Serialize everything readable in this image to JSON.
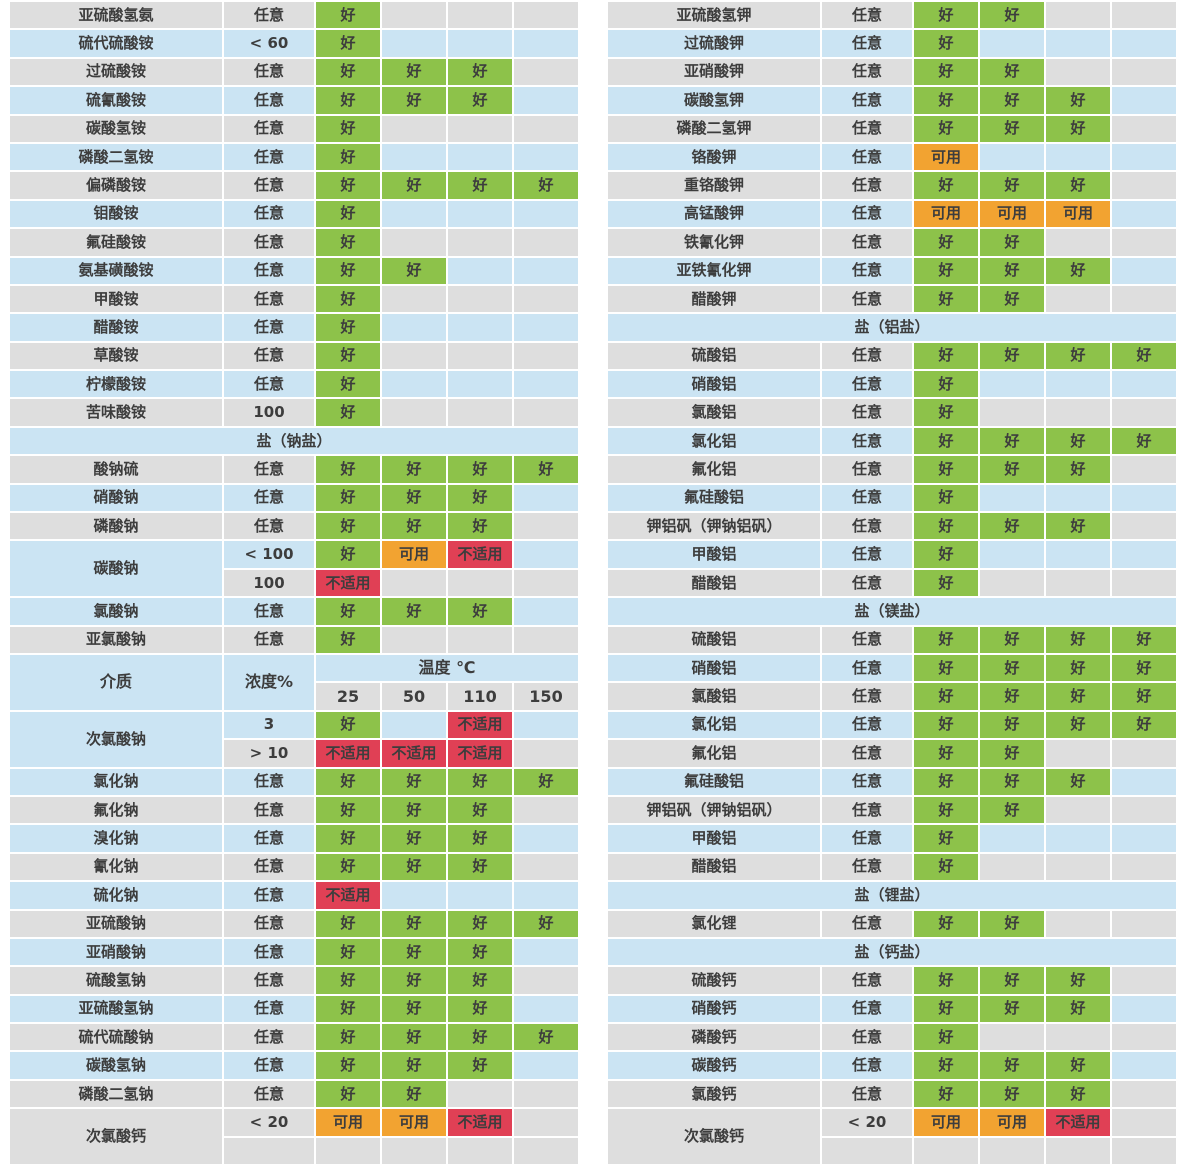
{
  "rating_labels": {
    "good": "好",
    "usable": "可用",
    "unsuitable": "不适用"
  },
  "colors": {
    "good": "#8dc24a",
    "usable": "#f2a331",
    "unsuitable": "#e04055",
    "row_gray": "#dedede",
    "row_blue": "#cbe4f3",
    "text": "#3d3d3d"
  },
  "header": {
    "medium": "介质",
    "concentration": "浓度%",
    "temperature": "温度 ℃",
    "temps": [
      "25",
      "50",
      "110",
      "150"
    ]
  },
  "left_table": {
    "rows": [
      {
        "n": "亚硫酸氢氨",
        "c": "任意",
        "r": [
          "G",
          null,
          null,
          null
        ],
        "s": "g"
      },
      {
        "n": "硫代硫酸铵",
        "c": "< 60",
        "r": [
          "G",
          null,
          null,
          null
        ],
        "s": "b"
      },
      {
        "n": "过硫酸铵",
        "c": "任意",
        "r": [
          "G",
          "G",
          "G",
          null
        ],
        "s": "g"
      },
      {
        "n": "硫氰酸铵",
        "c": "任意",
        "r": [
          "G",
          "G",
          "G",
          null
        ],
        "s": "b"
      },
      {
        "n": "碳酸氢铵",
        "c": "任意",
        "r": [
          "G",
          null,
          null,
          null
        ],
        "s": "g"
      },
      {
        "n": "磷酸二氢铵",
        "c": "任意",
        "r": [
          "G",
          null,
          null,
          null
        ],
        "s": "b"
      },
      {
        "n": "偏磷酸铵",
        "c": "任意",
        "r": [
          "G",
          "G",
          "G",
          "G"
        ],
        "s": "g"
      },
      {
        "n": "钼酸铵",
        "c": "任意",
        "r": [
          "G",
          null,
          null,
          null
        ],
        "s": "b"
      },
      {
        "n": "氟硅酸铵",
        "c": "任意",
        "r": [
          "G",
          null,
          null,
          null
        ],
        "s": "g"
      },
      {
        "n": "氨基磺酸铵",
        "c": "任意",
        "r": [
          "G",
          "G",
          null,
          null
        ],
        "s": "b"
      },
      {
        "n": "甲酸铵",
        "c": "任意",
        "r": [
          "G",
          null,
          null,
          null
        ],
        "s": "g"
      },
      {
        "n": "醋酸铵",
        "c": "任意",
        "r": [
          "G",
          null,
          null,
          null
        ],
        "s": "b"
      },
      {
        "n": "草酸铵",
        "c": "任意",
        "r": [
          "G",
          null,
          null,
          null
        ],
        "s": "g"
      },
      {
        "n": "柠檬酸铵",
        "c": "任意",
        "r": [
          "G",
          null,
          null,
          null
        ],
        "s": "b"
      },
      {
        "n": "苦味酸铵",
        "c": "100",
        "r": [
          "G",
          null,
          null,
          null
        ],
        "s": "g"
      },
      {
        "t": "sec",
        "n": "盐（钠盐）"
      },
      {
        "n": "酸钠硫",
        "c": "任意",
        "r": [
          "G",
          "G",
          "G",
          "G"
        ],
        "s": "g"
      },
      {
        "n": "硝酸钠",
        "c": "任意",
        "r": [
          "G",
          "G",
          "G",
          null
        ],
        "s": "b"
      },
      {
        "n": "磷酸钠",
        "c": "任意",
        "r": [
          "G",
          "G",
          "G",
          null
        ],
        "s": "g"
      },
      {
        "t": "m",
        "n": "碳酸钠",
        "ls": "b",
        "sub": [
          {
            "c": "< 100",
            "r": [
              "G",
              "U",
              "X",
              null
            ],
            "s": "b"
          },
          {
            "c": "100",
            "r": [
              "X",
              null,
              null,
              null
            ],
            "s": "g"
          }
        ]
      },
      {
        "n": "氯酸钠",
        "c": "任意",
        "r": [
          "G",
          "G",
          "G",
          null
        ],
        "s": "b"
      },
      {
        "n": "亚氯酸钠",
        "c": "任意",
        "r": [
          "G",
          null,
          null,
          null
        ],
        "s": "g"
      },
      {
        "t": "hdr"
      },
      {
        "t": "m",
        "n": "次氯酸钠",
        "ls": "b",
        "sub": [
          {
            "c": "3",
            "r": [
              "G",
              null,
              "X",
              null
            ],
            "s": "b"
          },
          {
            "c": "> 10",
            "r": [
              "X",
              "X",
              "X",
              null
            ],
            "s": "g"
          }
        ]
      },
      {
        "n": "氯化钠",
        "c": "任意",
        "r": [
          "G",
          "G",
          "G",
          "G"
        ],
        "s": "b"
      },
      {
        "n": "氟化钠",
        "c": "任意",
        "r": [
          "G",
          "G",
          "G",
          null
        ],
        "s": "g"
      },
      {
        "n": "溴化钠",
        "c": "任意",
        "r": [
          "G",
          "G",
          "G",
          null
        ],
        "s": "b"
      },
      {
        "n": "氰化钠",
        "c": "任意",
        "r": [
          "G",
          "G",
          "G",
          null
        ],
        "s": "g"
      },
      {
        "n": "硫化钠",
        "c": "任意",
        "r": [
          "X",
          null,
          null,
          null
        ],
        "s": "b"
      },
      {
        "n": "亚硫酸钠",
        "c": "任意",
        "r": [
          "G",
          "G",
          "G",
          "G"
        ],
        "s": "g"
      },
      {
        "n": "亚硝酸钠",
        "c": "任意",
        "r": [
          "G",
          "G",
          "G",
          null
        ],
        "s": "b"
      },
      {
        "n": "硫酸氢钠",
        "c": "任意",
        "r": [
          "G",
          "G",
          "G",
          null
        ],
        "s": "g"
      },
      {
        "n": "亚硫酸氢钠",
        "c": "任意",
        "r": [
          "G",
          "G",
          "G",
          null
        ],
        "s": "b"
      },
      {
        "n": "硫代硫酸钠",
        "c": "任意",
        "r": [
          "G",
          "G",
          "G",
          "G"
        ],
        "s": "g"
      },
      {
        "n": "碳酸氢钠",
        "c": "任意",
        "r": [
          "G",
          "G",
          "G",
          null
        ],
        "s": "b"
      },
      {
        "n": "磷酸二氢钠",
        "c": "任意",
        "r": [
          "G",
          "G",
          null,
          null
        ],
        "s": "g"
      },
      {
        "t": "m",
        "n": "次氯酸钙",
        "ls": "g",
        "sub": [
          {
            "c": "< 20",
            "r": [
              "U",
              "U",
              "X",
              null
            ],
            "s": "g"
          },
          {
            "c": "",
            "r": [
              null,
              null,
              null,
              null
            ],
            "s": "g"
          }
        ]
      }
    ]
  },
  "right_table": {
    "rows": [
      {
        "n": "亚硫酸氢钾",
        "c": "任意",
        "r": [
          "G",
          "G",
          null,
          null
        ],
        "s": "g"
      },
      {
        "n": "过硫酸钾",
        "c": "任意",
        "r": [
          "G",
          null,
          null,
          null
        ],
        "s": "b"
      },
      {
        "n": "亚硝酸钾",
        "c": "任意",
        "r": [
          "G",
          "G",
          null,
          null
        ],
        "s": "g"
      },
      {
        "n": "碳酸氢钾",
        "c": "任意",
        "r": [
          "G",
          "G",
          "G",
          null
        ],
        "s": "b"
      },
      {
        "n": "磷酸二氢钾",
        "c": "任意",
        "r": [
          "G",
          "G",
          "G",
          null
        ],
        "s": "g"
      },
      {
        "n": "铬酸钾",
        "c": "任意",
        "r": [
          "U",
          null,
          null,
          null
        ],
        "s": "b"
      },
      {
        "n": "重铬酸钾",
        "c": "任意",
        "r": [
          "G",
          "G",
          "G",
          null
        ],
        "s": "g"
      },
      {
        "n": "高锰酸钾",
        "c": "任意",
        "r": [
          "U",
          "U",
          "U",
          null
        ],
        "s": "b"
      },
      {
        "n": "铁氰化钾",
        "c": "任意",
        "r": [
          "G",
          "G",
          null,
          null
        ],
        "s": "g"
      },
      {
        "n": "亚铁氰化钾",
        "c": "任意",
        "r": [
          "G",
          "G",
          "G",
          null
        ],
        "s": "b"
      },
      {
        "n": "醋酸钾",
        "c": "任意",
        "r": [
          "G",
          "G",
          null,
          null
        ],
        "s": "g"
      },
      {
        "t": "sec",
        "n": "盐（铝盐）"
      },
      {
        "n": "硫酸铝",
        "c": "任意",
        "r": [
          "G",
          "G",
          "G",
          "G"
        ],
        "s": "g"
      },
      {
        "n": "硝酸铝",
        "c": "任意",
        "r": [
          "G",
          null,
          null,
          null
        ],
        "s": "b"
      },
      {
        "n": "氯酸铝",
        "c": "任意",
        "r": [
          "G",
          null,
          null,
          null
        ],
        "s": "g"
      },
      {
        "n": "氯化铝",
        "c": "任意",
        "r": [
          "G",
          "G",
          "G",
          "G"
        ],
        "s": "b"
      },
      {
        "n": "氟化铝",
        "c": "任意",
        "r": [
          "G",
          "G",
          "G",
          null
        ],
        "s": "g"
      },
      {
        "n": "氟硅酸铝",
        "c": "任意",
        "r": [
          "G",
          null,
          null,
          null
        ],
        "s": "b"
      },
      {
        "n": "钾铝矾（钾钠铝矾）",
        "c": "任意",
        "r": [
          "G",
          "G",
          "G",
          null
        ],
        "s": "g"
      },
      {
        "n": "甲酸铝",
        "c": "任意",
        "r": [
          "G",
          null,
          null,
          null
        ],
        "s": "b"
      },
      {
        "n": "醋酸铝",
        "c": "任意",
        "r": [
          "G",
          null,
          null,
          null
        ],
        "s": "g"
      },
      {
        "t": "sec",
        "n": "盐（镁盐）"
      },
      {
        "n": "硫酸铝",
        "c": "任意",
        "r": [
          "G",
          "G",
          "G",
          "G"
        ],
        "s": "g"
      },
      {
        "n": "硝酸铝",
        "c": "任意",
        "r": [
          "G",
          "G",
          "G",
          "G"
        ],
        "s": "b"
      },
      {
        "n": "氯酸铝",
        "c": "任意",
        "r": [
          "G",
          "G",
          "G",
          "G"
        ],
        "s": "g"
      },
      {
        "n": "氯化铝",
        "c": "任意",
        "r": [
          "G",
          "G",
          "G",
          "G"
        ],
        "s": "b"
      },
      {
        "n": "氟化铝",
        "c": "任意",
        "r": [
          "G",
          "G",
          null,
          null
        ],
        "s": "g"
      },
      {
        "n": "氟硅酸铝",
        "c": "任意",
        "r": [
          "G",
          "G",
          "G",
          null
        ],
        "s": "b"
      },
      {
        "n": "钾铝矾（钾钠铝矾）",
        "c": "任意",
        "r": [
          "G",
          "G",
          null,
          null
        ],
        "s": "g"
      },
      {
        "n": "甲酸铝",
        "c": "任意",
        "r": [
          "G",
          null,
          null,
          null
        ],
        "s": "b"
      },
      {
        "n": "醋酸铝",
        "c": "任意",
        "r": [
          "G",
          null,
          null,
          null
        ],
        "s": "g"
      },
      {
        "t": "sec",
        "n": "盐（锂盐）"
      },
      {
        "n": "氯化锂",
        "c": "任意",
        "r": [
          "G",
          "G",
          null,
          null
        ],
        "s": "g"
      },
      {
        "t": "sec",
        "n": "盐（钙盐）"
      },
      {
        "n": "硫酸钙",
        "c": "任意",
        "r": [
          "G",
          "G",
          "G",
          null
        ],
        "s": "g"
      },
      {
        "n": "硝酸钙",
        "c": "任意",
        "r": [
          "G",
          "G",
          "G",
          null
        ],
        "s": "b"
      },
      {
        "n": "磷酸钙",
        "c": "任意",
        "r": [
          "G",
          null,
          null,
          null
        ],
        "s": "g"
      },
      {
        "n": "碳酸钙",
        "c": "任意",
        "r": [
          "G",
          "G",
          "G",
          null
        ],
        "s": "b"
      },
      {
        "n": "氯酸钙",
        "c": "任意",
        "r": [
          "G",
          "G",
          "G",
          null
        ],
        "s": "g"
      },
      {
        "t": "m",
        "n": "次氯酸钙",
        "ls": "g",
        "sub": [
          {
            "c": "< 20",
            "r": [
              "U",
              "U",
              "X",
              null
            ],
            "s": "g"
          },
          {
            "c": "",
            "r": [
              null,
              null,
              null,
              null
            ],
            "s": "g"
          }
        ]
      }
    ]
  }
}
